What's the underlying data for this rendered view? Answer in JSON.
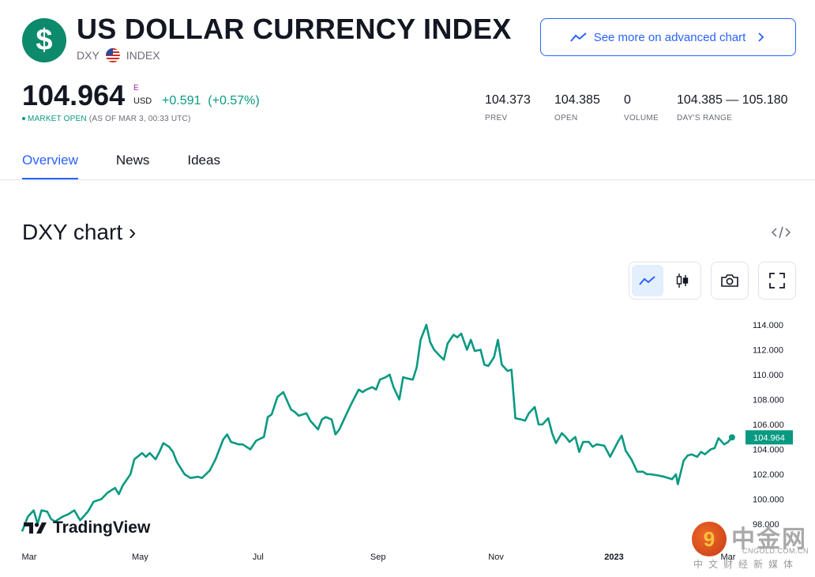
{
  "header": {
    "logo_symbol": "$",
    "title": "US DOLLAR CURRENCY INDEX",
    "ticker": "DXY",
    "type": "INDEX",
    "flag_icon": "us-flag-icon",
    "advanced_chart_label": "See more on advanced chart"
  },
  "quote": {
    "price": "104.964",
    "price_marker": "E",
    "currency": "USD",
    "change": "+0.591",
    "change_pct": "(+0.57%)",
    "market_status": "MARKET OPEN",
    "as_of": "(AS OF MAR 3, 00:33 UTC)",
    "positive_color": "#089981"
  },
  "stats": [
    {
      "value": "104.373",
      "label": "PREV"
    },
    {
      "value": "104.385",
      "label": "OPEN"
    },
    {
      "value": "0",
      "label": "VOLUME"
    },
    {
      "value": "104.385 — 105.180",
      "label": "DAY'S RANGE"
    }
  ],
  "tabs": [
    {
      "label": "Overview",
      "active": true
    },
    {
      "label": "News",
      "active": false
    },
    {
      "label": "Ideas",
      "active": false
    }
  ],
  "chart_section": {
    "title": "DXY chart ›",
    "embed_icon": "code-embed-icon",
    "tools": [
      "line-chart-icon",
      "candles-icon",
      "camera-icon",
      "fullscreen-icon"
    ],
    "brand": "TradingView",
    "watermark_cn": "中金网",
    "watermark_url": "CNGOLD.COM.CN",
    "watermark_sub": "中文财经新媒体",
    "watermark_logo_char": "9"
  },
  "chart_data": {
    "type": "line",
    "title": "",
    "xlabel": "",
    "ylabel": "",
    "line_color": "#089981",
    "ylim": [
      97.5,
      115.0
    ],
    "y_ticks": [
      "114.000",
      "112.000",
      "110.000",
      "108.000",
      "106.000",
      "104.000",
      "102.000",
      "100.000",
      "98.000"
    ],
    "y_tick_values": [
      114,
      112,
      110,
      108,
      106,
      104,
      102,
      100,
      98
    ],
    "x_ticks": [
      "Mar",
      "May",
      "Jul",
      "Sep",
      "Nov",
      "2023",
      "Mar"
    ],
    "x_tick_dates": [
      "2022-03-01",
      "2022-05-01",
      "2022-07-01",
      "2022-09-01",
      "2022-11-01",
      "2023-01-01",
      "2023-03-01"
    ],
    "last_value_label": "104.964",
    "series": [
      {
        "points": [
          [
            "2022-03-01",
            97.4
          ],
          [
            "2022-03-04",
            98.6
          ],
          [
            "2022-03-07",
            99.1
          ],
          [
            "2022-03-09",
            98.0
          ],
          [
            "2022-03-11",
            99.1
          ],
          [
            "2022-03-14",
            99.0
          ],
          [
            "2022-03-16",
            98.4
          ],
          [
            "2022-03-18",
            98.2
          ],
          [
            "2022-03-22",
            98.6
          ],
          [
            "2022-03-25",
            98.8
          ],
          [
            "2022-03-28",
            99.1
          ],
          [
            "2022-03-31",
            98.3
          ],
          [
            "2022-04-04",
            99.0
          ],
          [
            "2022-04-07",
            99.8
          ],
          [
            "2022-04-11",
            100.0
          ],
          [
            "2022-04-14",
            100.5
          ],
          [
            "2022-04-18",
            100.9
          ],
          [
            "2022-04-20",
            100.4
          ],
          [
            "2022-04-22",
            101.1
          ],
          [
            "2022-04-26",
            102.0
          ],
          [
            "2022-04-28",
            103.2
          ],
          [
            "2022-05-02",
            103.7
          ],
          [
            "2022-05-04",
            103.4
          ],
          [
            "2022-05-06",
            103.7
          ],
          [
            "2022-05-09",
            103.2
          ],
          [
            "2022-05-11",
            103.8
          ],
          [
            "2022-05-13",
            104.5
          ],
          [
            "2022-05-16",
            104.2
          ],
          [
            "2022-05-18",
            103.8
          ],
          [
            "2022-05-20",
            103.0
          ],
          [
            "2022-05-24",
            102.0
          ],
          [
            "2022-05-27",
            101.7
          ],
          [
            "2022-05-31",
            101.8
          ],
          [
            "2022-06-02",
            101.7
          ],
          [
            "2022-06-06",
            102.3
          ],
          [
            "2022-06-09",
            103.2
          ],
          [
            "2022-06-13",
            104.8
          ],
          [
            "2022-06-15",
            105.2
          ],
          [
            "2022-06-17",
            104.6
          ],
          [
            "2022-06-21",
            104.4
          ],
          [
            "2022-06-23",
            104.4
          ],
          [
            "2022-06-27",
            104.0
          ],
          [
            "2022-06-30",
            104.7
          ],
          [
            "2022-07-04",
            105.0
          ],
          [
            "2022-07-06",
            106.6
          ],
          [
            "2022-07-08",
            106.8
          ],
          [
            "2022-07-11",
            108.2
          ],
          [
            "2022-07-14",
            108.6
          ],
          [
            "2022-07-18",
            107.2
          ],
          [
            "2022-07-20",
            107.0
          ],
          [
            "2022-07-22",
            106.7
          ],
          [
            "2022-07-26",
            106.9
          ],
          [
            "2022-07-28",
            106.3
          ],
          [
            "2022-08-01",
            105.6
          ],
          [
            "2022-08-03",
            106.4
          ],
          [
            "2022-08-05",
            106.6
          ],
          [
            "2022-08-08",
            106.4
          ],
          [
            "2022-08-10",
            105.2
          ],
          [
            "2022-08-12",
            105.6
          ],
          [
            "2022-08-15",
            106.6
          ],
          [
            "2022-08-18",
            107.6
          ],
          [
            "2022-08-22",
            108.8
          ],
          [
            "2022-08-24",
            108.6
          ],
          [
            "2022-08-26",
            108.8
          ],
          [
            "2022-08-29",
            109.0
          ],
          [
            "2022-08-31",
            108.8
          ],
          [
            "2022-09-02",
            109.6
          ],
          [
            "2022-09-05",
            109.8
          ],
          [
            "2022-09-07",
            110.0
          ],
          [
            "2022-09-09",
            109.0
          ],
          [
            "2022-09-12",
            108.0
          ],
          [
            "2022-09-14",
            109.8
          ],
          [
            "2022-09-16",
            109.7
          ],
          [
            "2022-09-19",
            109.6
          ],
          [
            "2022-09-21",
            110.6
          ],
          [
            "2022-09-23",
            112.8
          ],
          [
            "2022-09-26",
            114.0
          ],
          [
            "2022-09-28",
            112.6
          ],
          [
            "2022-09-30",
            112.0
          ],
          [
            "2022-10-03",
            111.5
          ],
          [
            "2022-10-05",
            111.2
          ],
          [
            "2022-10-07",
            112.5
          ],
          [
            "2022-10-10",
            113.2
          ],
          [
            "2022-10-12",
            113.0
          ],
          [
            "2022-10-14",
            113.3
          ],
          [
            "2022-10-17",
            112.0
          ],
          [
            "2022-10-19",
            112.8
          ],
          [
            "2022-10-21",
            111.9
          ],
          [
            "2022-10-24",
            112.0
          ],
          [
            "2022-10-26",
            110.8
          ],
          [
            "2022-10-28",
            110.7
          ],
          [
            "2022-10-31",
            111.4
          ],
          [
            "2022-11-02",
            112.8
          ],
          [
            "2022-11-04",
            110.8
          ],
          [
            "2022-11-07",
            110.3
          ],
          [
            "2022-11-09",
            110.4
          ],
          [
            "2022-11-11",
            106.5
          ],
          [
            "2022-11-14",
            106.4
          ],
          [
            "2022-11-16",
            106.3
          ],
          [
            "2022-11-18",
            106.9
          ],
          [
            "2022-11-21",
            107.4
          ],
          [
            "2022-11-23",
            106.0
          ],
          [
            "2022-11-25",
            106.0
          ],
          [
            "2022-11-28",
            106.5
          ],
          [
            "2022-11-30",
            105.3
          ],
          [
            "2022-12-02",
            104.5
          ],
          [
            "2022-12-05",
            105.3
          ],
          [
            "2022-12-07",
            105.0
          ],
          [
            "2022-12-09",
            104.6
          ],
          [
            "2022-12-12",
            105.0
          ],
          [
            "2022-12-14",
            103.8
          ],
          [
            "2022-12-16",
            104.6
          ],
          [
            "2022-12-19",
            104.6
          ],
          [
            "2022-12-21",
            104.2
          ],
          [
            "2022-12-23",
            104.4
          ],
          [
            "2022-12-27",
            104.3
          ],
          [
            "2022-12-30",
            103.4
          ],
          [
            "2023-01-03",
            104.6
          ],
          [
            "2023-01-05",
            105.1
          ],
          [
            "2023-01-07",
            103.9
          ],
          [
            "2023-01-10",
            103.2
          ],
          [
            "2023-01-13",
            102.2
          ],
          [
            "2023-01-16",
            102.2
          ],
          [
            "2023-01-18",
            102.0
          ],
          [
            "2023-01-20",
            102.0
          ],
          [
            "2023-01-24",
            101.9
          ],
          [
            "2023-01-27",
            101.8
          ],
          [
            "2023-01-31",
            101.6
          ],
          [
            "2023-02-02",
            102.0
          ],
          [
            "2023-02-03",
            101.2
          ],
          [
            "2023-02-06",
            103.1
          ],
          [
            "2023-02-08",
            103.5
          ],
          [
            "2023-02-10",
            103.6
          ],
          [
            "2023-02-13",
            103.4
          ],
          [
            "2023-02-15",
            103.8
          ],
          [
            "2023-02-17",
            103.6
          ],
          [
            "2023-02-20",
            104.0
          ],
          [
            "2023-02-22",
            104.1
          ],
          [
            "2023-02-24",
            104.9
          ],
          [
            "2023-02-27",
            104.4
          ],
          [
            "2023-03-01",
            104.6
          ],
          [
            "2023-03-03",
            104.964
          ]
        ]
      }
    ]
  }
}
